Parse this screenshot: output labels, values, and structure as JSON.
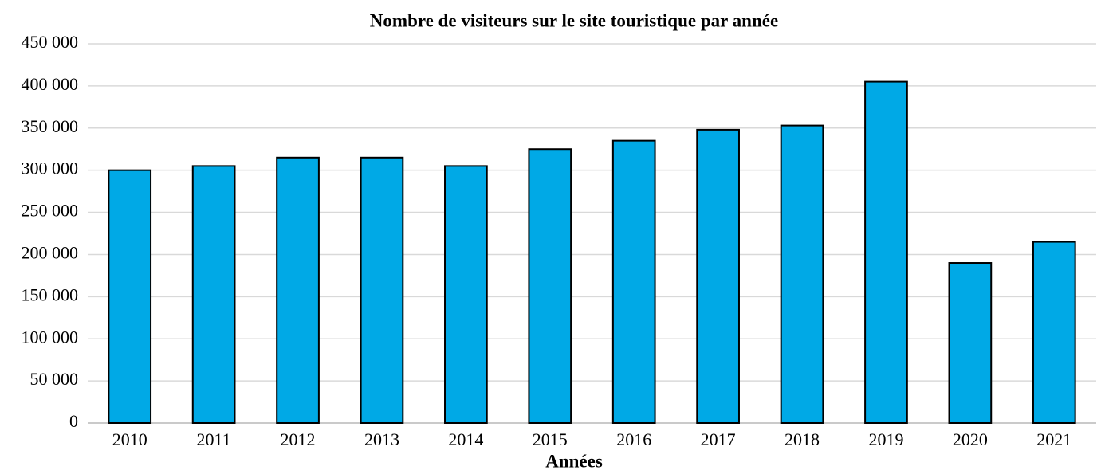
{
  "chart_data": {
    "type": "bar",
    "title": "Nombre de visiteurs sur le site touristique par année",
    "x_label": "Années",
    "categories": [
      "2010",
      "2011",
      "2012",
      "2013",
      "2014",
      "2015",
      "2016",
      "2017",
      "2018",
      "2019",
      "2020",
      "2021"
    ],
    "values": [
      300000,
      305000,
      315000,
      315000,
      305000,
      325000,
      335000,
      348000,
      353000,
      405000,
      190000,
      215000
    ],
    "color": "#00a9e6",
    "ylim": [
      0,
      450000
    ],
    "yticks": [
      0,
      {
        "value": 50000,
        "label": "50 000"
      },
      {
        "value": 100000,
        "label": "100 000"
      },
      {
        "value": 150000,
        "label": "150 000"
      },
      {
        "value": 200000,
        "label": "200 000"
      },
      {
        "value": 250000,
        "label": "250 000"
      },
      {
        "value": 300000,
        "label": "300 000"
      },
      {
        "value": 350000,
        "label": "350 000"
      },
      {
        "value": 400000,
        "label": "400 000"
      },
      {
        "value": 450000,
        "label": "450 000"
      }
    ],
    "grid": true
  }
}
